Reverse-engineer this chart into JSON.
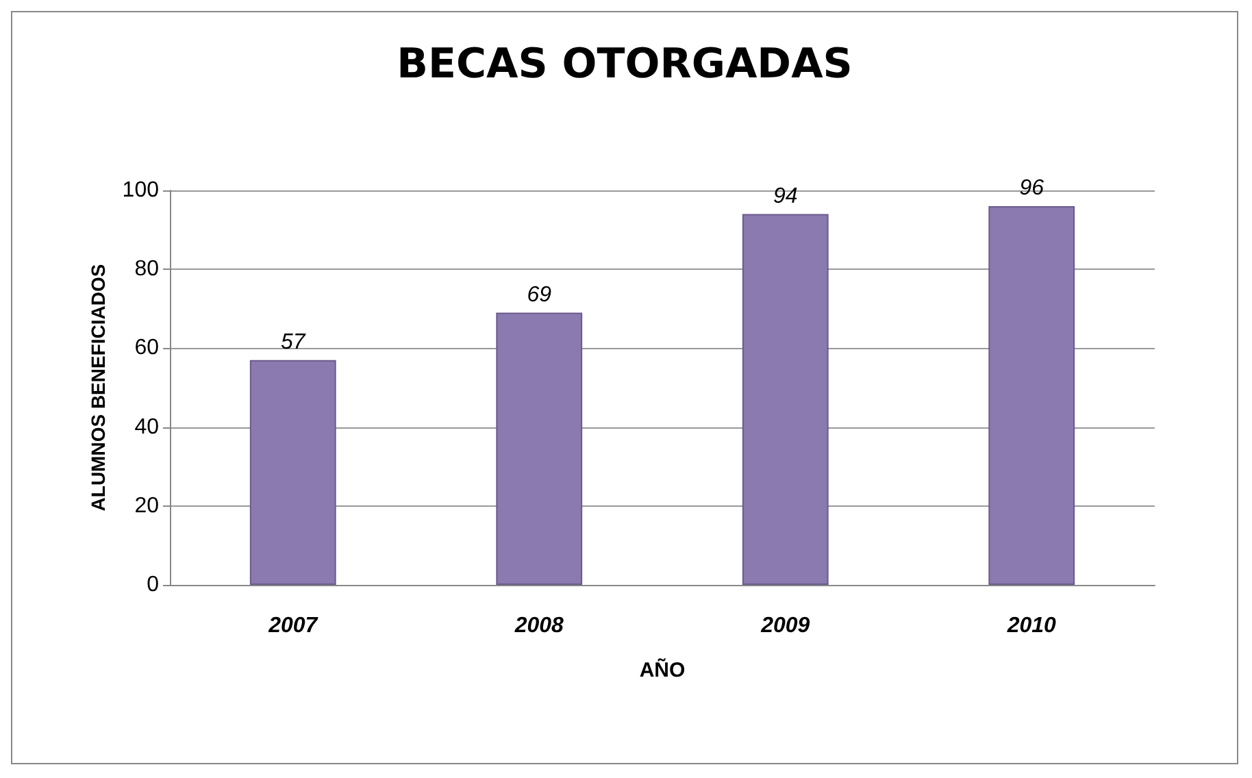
{
  "chart_data": {
    "type": "bar",
    "title": "BECAS OTORGADAS",
    "xlabel": "AÑO",
    "ylabel": "ALUMNOS BENEFICIADOS",
    "categories": [
      "2007",
      "2008",
      "2009",
      "2010"
    ],
    "values": [
      57,
      69,
      94,
      96
    ],
    "color": "#8b7ab0",
    "ylim": [
      0,
      100
    ],
    "yticks": [
      0,
      20,
      40,
      60,
      80,
      100
    ],
    "grid": "y",
    "data_labels": true
  }
}
